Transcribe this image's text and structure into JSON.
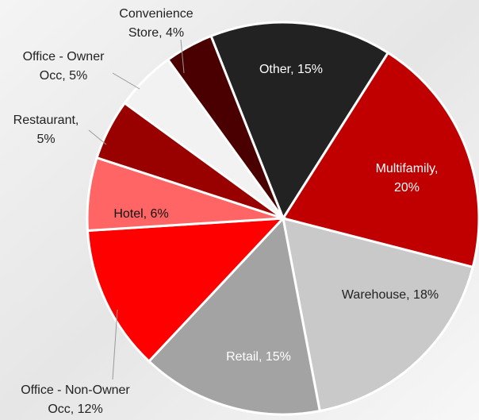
{
  "chart_data": {
    "type": "pie",
    "values": [
      15,
      20,
      18,
      15,
      12,
      6,
      5,
      5,
      4
    ],
    "value_labels": [
      "Other, 15%",
      "Multifamily,\n20%",
      "Warehouse, 18%",
      "Retail, 15%",
      "Office - Non-Owner\nOcc, 12%",
      "Hotel, 6%",
      "Restaurant,\n5%",
      "Office - Owner\nOcc, 5%",
      "Convenience\nStore, 4%"
    ],
    "colors": [
      "#222222",
      "#c00000",
      "#c9c9c9",
      "#a3a3a3",
      "#ff0000",
      "#ff6565",
      "#990000",
      "#f2f2f2",
      "#4a0000"
    ]
  }
}
